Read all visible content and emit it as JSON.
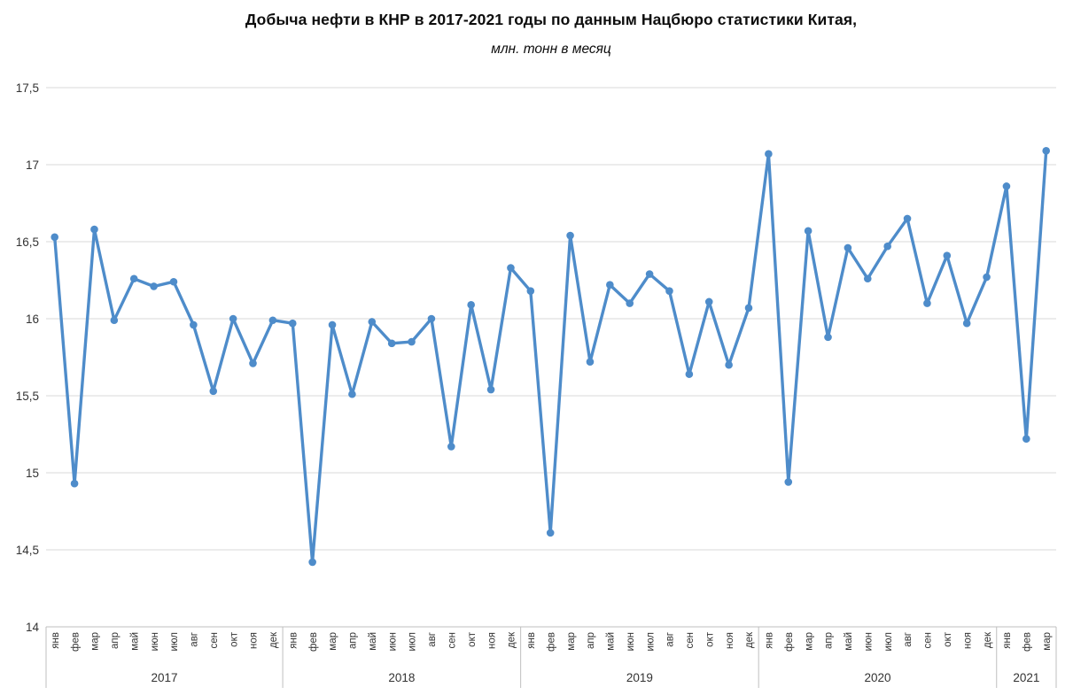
{
  "chart_data": {
    "type": "line",
    "title": "Добыча нефти в КНР в 2017-2021 годы по данным Нацбюро статистики Китая,",
    "subtitle": "млн. тонн в месяц",
    "xlabel": "",
    "ylabel": "",
    "ylim": [
      14,
      17.5
    ],
    "ytick_step": 0.5,
    "ytick_labels": [
      "14",
      "14,5",
      "15",
      "15,5",
      "16",
      "16,5",
      "17",
      "17,5"
    ],
    "grid": true,
    "legend_position": "none",
    "month_labels": [
      "янв",
      "фев",
      "мар",
      "апр",
      "май",
      "июн",
      "июл",
      "авг",
      "сен",
      "окт",
      "ноя",
      "дек"
    ],
    "years": [
      {
        "label": "2017",
        "values": [
          16.53,
          14.93,
          16.58,
          15.99,
          16.26,
          16.21,
          16.24,
          15.96,
          15.53,
          16.0,
          15.71,
          15.99
        ]
      },
      {
        "label": "2018",
        "values": [
          15.97,
          14.42,
          15.96,
          15.51,
          15.98,
          15.84,
          15.85,
          16.0,
          15.17,
          16.09,
          15.54,
          16.33
        ]
      },
      {
        "label": "2019",
        "values": [
          16.18,
          14.61,
          16.54,
          15.72,
          16.22,
          16.1,
          16.29,
          16.18,
          15.64,
          16.11,
          15.7,
          16.07
        ]
      },
      {
        "label": "2020",
        "values": [
          17.07,
          14.94,
          16.57,
          15.88,
          16.46,
          16.26,
          16.47,
          16.65,
          16.1,
          16.41,
          15.97,
          16.27
        ]
      },
      {
        "label": "2021",
        "values": [
          16.86,
          15.22,
          17.09
        ]
      }
    ],
    "colors": {
      "line": "#4e8cca",
      "marker": "#4e8cca",
      "grid": "#d9d9d9",
      "axis": "#bfbfbf",
      "tick_text": "#333333",
      "title_text": "#0d0d0d"
    }
  }
}
